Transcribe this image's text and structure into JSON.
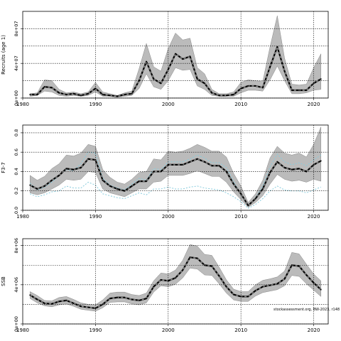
{
  "watermark": "stockassessment.org, BW-2023, r148",
  "colors": {
    "band": "#bbbbbb",
    "band_edge": "#888888",
    "line": "#000000",
    "dash": "#888888",
    "obs": "#88ccdd",
    "grid": "#000000"
  },
  "chart_data": [
    {
      "type": "area",
      "name": "recruits",
      "ylabel": "Recruits (age 1)",
      "xlabel": "",
      "xlim": [
        1980,
        2022
      ],
      "ylim": [
        0,
        100000000
      ],
      "xticks": [
        1980,
        1990,
        2000,
        2010,
        2020
      ],
      "yticks": [
        0,
        40000000,
        80000000
      ],
      "ytick_labels": [
        "0e+00",
        "4e+07",
        "8e+07"
      ],
      "hgrid": [
        0,
        20000000,
        40000000,
        60000000,
        80000000
      ],
      "vgrid": [
        1990,
        2000,
        2010,
        2020
      ],
      "x": [
        1981,
        1982,
        1983,
        1984,
        1985,
        1986,
        1987,
        1988,
        1989,
        1990,
        1991,
        1992,
        1993,
        1994,
        1995,
        1996,
        1997,
        1998,
        1999,
        2000,
        2001,
        2002,
        2003,
        2004,
        2005,
        2006,
        2007,
        2008,
        2009,
        2010,
        2011,
        2012,
        2013,
        2014,
        2015,
        2016,
        2017,
        2018,
        2019,
        2020,
        2021
      ],
      "estimate": [
        4,
        4,
        13,
        12,
        6,
        4,
        5,
        3,
        5,
        11,
        4,
        3,
        2,
        4,
        5,
        20,
        42,
        22,
        17,
        33,
        51,
        45,
        48,
        22,
        17,
        6,
        3,
        3,
        4,
        11,
        14,
        14,
        12,
        36,
        59,
        31,
        9,
        9,
        9,
        17,
        22
      ],
      "upper": [
        5,
        6,
        21,
        20,
        10,
        6,
        7,
        5,
        7,
        18,
        7,
        5,
        3,
        6,
        8,
        34,
        63,
        36,
        31,
        57,
        75,
        67,
        69,
        35,
        28,
        10,
        5,
        5,
        7,
        18,
        21,
        20,
        19,
        59,
        95,
        46,
        16,
        15,
        16,
        35,
        51
      ],
      "lower": [
        2,
        3,
        8,
        7,
        3,
        2,
        3,
        2,
        3,
        7,
        2,
        2,
        1,
        2,
        3,
        11,
        28,
        13,
        10,
        20,
        35,
        32,
        33,
        14,
        10,
        3,
        2,
        2,
        2,
        6,
        9,
        9,
        8,
        21,
        37,
        20,
        5,
        5,
        6,
        9,
        10
      ],
      "scale": 1000000
    },
    {
      "type": "area",
      "name": "fishing-mortality",
      "ylabel": "F3-7",
      "xlabel": "",
      "xlim": [
        1980,
        2022
      ],
      "ylim": [
        0,
        0.88
      ],
      "xticks": [
        1980,
        1990,
        2000,
        2010,
        2020
      ],
      "yticks": [
        0.0,
        0.2,
        0.4,
        0.6,
        0.8
      ],
      "ytick_labels": [
        "0.0",
        "0.2",
        "0.4",
        "0.6",
        "0.8"
      ],
      "hgrid": [
        0.0,
        0.2,
        0.4,
        0.6,
        0.8
      ],
      "vgrid": [
        1990,
        2000,
        2010,
        2020
      ],
      "x": [
        1981,
        1982,
        1983,
        1984,
        1985,
        1986,
        1987,
        1988,
        1989,
        1990,
        1991,
        1992,
        1993,
        1994,
        1995,
        1996,
        1997,
        1998,
        1999,
        2000,
        2001,
        2002,
        2003,
        2004,
        2005,
        2006,
        2007,
        2008,
        2009,
        2010,
        2011,
        2012,
        2013,
        2014,
        2015,
        2016,
        2017,
        2018,
        2019,
        2020,
        2021
      ],
      "estimate": [
        0.26,
        0.22,
        0.25,
        0.31,
        0.36,
        0.43,
        0.42,
        0.44,
        0.53,
        0.52,
        0.31,
        0.25,
        0.22,
        0.2,
        0.25,
        0.3,
        0.3,
        0.4,
        0.4,
        0.47,
        0.47,
        0.47,
        0.5,
        0.53,
        0.5,
        0.46,
        0.46,
        0.4,
        0.27,
        0.17,
        0.05,
        0.12,
        0.22,
        0.39,
        0.5,
        0.44,
        0.42,
        0.43,
        0.4,
        0.47,
        0.51
      ],
      "upper": [
        0.36,
        0.31,
        0.35,
        0.43,
        0.48,
        0.57,
        0.56,
        0.59,
        0.68,
        0.66,
        0.42,
        0.34,
        0.29,
        0.27,
        0.32,
        0.39,
        0.4,
        0.53,
        0.52,
        0.61,
        0.6,
        0.61,
        0.64,
        0.68,
        0.65,
        0.61,
        0.61,
        0.55,
        0.38,
        0.25,
        0.08,
        0.17,
        0.31,
        0.54,
        0.66,
        0.59,
        0.57,
        0.59,
        0.55,
        0.68,
        0.86
      ],
      "lower": [
        0.18,
        0.16,
        0.18,
        0.22,
        0.26,
        0.32,
        0.31,
        0.32,
        0.4,
        0.39,
        0.22,
        0.18,
        0.16,
        0.14,
        0.18,
        0.22,
        0.22,
        0.29,
        0.3,
        0.36,
        0.36,
        0.36,
        0.38,
        0.41,
        0.38,
        0.35,
        0.35,
        0.29,
        0.19,
        0.11,
        0.03,
        0.08,
        0.15,
        0.27,
        0.37,
        0.32,
        0.3,
        0.31,
        0.29,
        0.32,
        0.3
      ],
      "obs_upper": [
        0.28,
        0.21,
        0.24,
        0.29,
        0.36,
        0.42,
        0.41,
        0.48,
        0.6,
        0.59,
        0.33,
        0.26,
        0.23,
        0.21,
        0.27,
        0.33,
        0.31,
        0.43,
        0.42,
        0.5,
        0.5,
        0.5,
        0.53,
        0.57,
        0.54,
        0.49,
        0.49,
        0.44,
        0.3,
        0.16,
        0.04,
        0.13,
        0.25,
        0.45,
        0.58,
        0.5,
        0.47,
        0.49,
        0.46,
        0.52,
        0.57
      ],
      "obs_lower": [
        0.17,
        0.14,
        0.16,
        0.19,
        0.2,
        0.25,
        0.23,
        0.23,
        0.29,
        0.26,
        0.17,
        0.15,
        0.13,
        0.12,
        0.15,
        0.18,
        0.16,
        0.22,
        0.22,
        0.24,
        0.22,
        0.22,
        0.24,
        0.25,
        0.23,
        0.22,
        0.21,
        0.18,
        0.14,
        0.09,
        0.02,
        0.06,
        0.12,
        0.2,
        0.25,
        0.21,
        0.2,
        0.2,
        0.18,
        0.21,
        0.24
      ]
    },
    {
      "type": "area",
      "name": "ssb",
      "ylabel": "SSB",
      "xlabel": "",
      "xlim": [
        1980,
        2022
      ],
      "ylim": [
        0,
        8700000
      ],
      "xticks": [
        1980,
        1990,
        2000,
        2010,
        2020
      ],
      "yticks": [
        0,
        4000000,
        8000000
      ],
      "ytick_labels": [
        "0e+00",
        "4e+06",
        "8e+06"
      ],
      "hgrid": [
        0,
        2000000,
        4000000,
        6000000,
        8000000
      ],
      "vgrid": [
        1990,
        2000,
        2010,
        2020
      ],
      "x": [
        1981,
        1982,
        1983,
        1984,
        1985,
        1986,
        1987,
        1988,
        1989,
        1990,
        1991,
        1992,
        1993,
        1994,
        1995,
        1996,
        1997,
        1998,
        1999,
        2000,
        2001,
        2002,
        2003,
        2004,
        2005,
        2006,
        2007,
        2008,
        2009,
        2010,
        2011,
        2012,
        2013,
        2014,
        2015,
        2016,
        2017,
        2018,
        2019,
        2020,
        2021
      ],
      "estimate": [
        2.95,
        2.5,
        2.1,
        2.05,
        2.3,
        2.4,
        2.1,
        1.8,
        1.7,
        1.6,
        2.0,
        2.6,
        2.7,
        2.7,
        2.5,
        2.4,
        2.6,
        3.8,
        4.5,
        4.4,
        4.7,
        5.5,
        6.8,
        6.7,
        6.0,
        5.9,
        4.9,
        3.8,
        3.0,
        2.8,
        2.8,
        3.4,
        3.8,
        3.95,
        4.1,
        4.6,
        6.0,
        5.9,
        5.0,
        4.2,
        3.5
      ],
      "upper": [
        3.3,
        2.9,
        2.4,
        2.35,
        2.7,
        2.8,
        2.5,
        2.15,
        2.0,
        1.95,
        2.45,
        3.15,
        3.25,
        3.25,
        3.0,
        2.9,
        3.15,
        4.4,
        5.2,
        5.1,
        5.5,
        6.5,
        8.1,
        7.95,
        7.1,
        7.0,
        5.8,
        4.5,
        3.55,
        3.3,
        3.3,
        4.0,
        4.45,
        4.6,
        4.8,
        5.4,
        7.3,
        7.15,
        6.1,
        5.1,
        4.4
      ],
      "lower": [
        2.6,
        2.15,
        1.85,
        1.75,
        1.95,
        2.05,
        1.8,
        1.5,
        1.4,
        1.3,
        1.65,
        2.2,
        2.25,
        2.25,
        2.05,
        1.95,
        2.15,
        3.25,
        3.9,
        3.8,
        4.05,
        4.7,
        5.7,
        5.6,
        5.0,
        4.95,
        4.1,
        3.15,
        2.45,
        2.3,
        2.3,
        2.85,
        3.2,
        3.35,
        3.5,
        3.9,
        4.95,
        4.85,
        4.1,
        3.45,
        2.8
      ],
      "scale": 1000000
    }
  ]
}
